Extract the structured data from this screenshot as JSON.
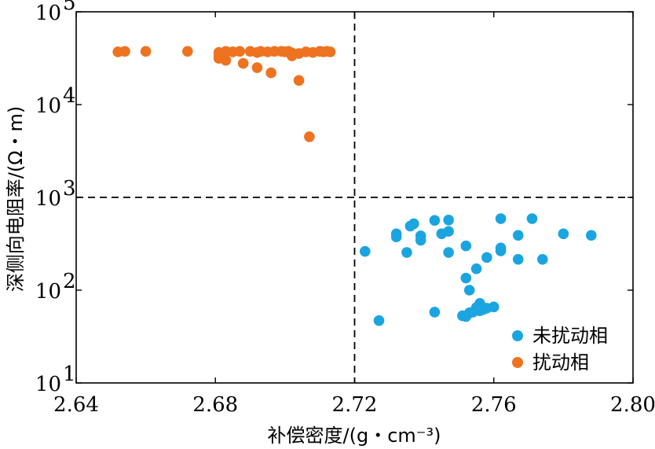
{
  "chart_data": {
    "type": "scatter",
    "xlabel": "补偿密度/(g・cm⁻³)",
    "ylabel": "深侧向电阻率/(Ω・m)",
    "xlim": [
      2.64,
      2.8
    ],
    "ylim": [
      10,
      100000
    ],
    "yscale": "log",
    "x_ticks": [
      "2.64",
      "2.68",
      "2.72",
      "2.76",
      "2.80"
    ],
    "y_ticks": [
      {
        "base": "10",
        "exp": "1",
        "value": 10
      },
      {
        "base": "10",
        "exp": "2",
        "value": 100
      },
      {
        "base": "10",
        "exp": "3",
        "value": 1000
      },
      {
        "base": "10",
        "exp": "4",
        "value": 10000
      },
      {
        "base": "10",
        "exp": "5",
        "value": 100000
      }
    ],
    "threshold_lines": {
      "x": 2.72,
      "y": 1000
    },
    "grid": false,
    "legend_position": "bottom-right",
    "series": [
      {
        "name": "未扰动相",
        "color": "#1ba5e0",
        "points": [
          [
            2.723,
            262
          ],
          [
            2.727,
            47
          ],
          [
            2.732,
            405
          ],
          [
            2.732,
            375
          ],
          [
            2.735,
            255
          ],
          [
            2.736,
            490
          ],
          [
            2.737,
            520
          ],
          [
            2.739,
            385
          ],
          [
            2.739,
            345
          ],
          [
            2.743,
            565
          ],
          [
            2.743,
            58
          ],
          [
            2.745,
            405
          ],
          [
            2.747,
            430
          ],
          [
            2.747,
            570
          ],
          [
            2.747,
            255
          ],
          [
            2.751,
            53
          ],
          [
            2.752,
            52
          ],
          [
            2.752,
            300
          ],
          [
            2.752,
            135
          ],
          [
            2.753,
            100
          ],
          [
            2.753,
            57
          ],
          [
            2.754,
            58
          ],
          [
            2.755,
            170
          ],
          [
            2.755,
            65
          ],
          [
            2.756,
            72
          ],
          [
            2.756,
            60
          ],
          [
            2.757,
            62
          ],
          [
            2.758,
            225
          ],
          [
            2.758,
            64
          ],
          [
            2.76,
            66
          ],
          [
            2.762,
            590
          ],
          [
            2.762,
            285
          ],
          [
            2.762,
            265
          ],
          [
            2.767,
            390
          ],
          [
            2.767,
            215
          ],
          [
            2.771,
            590
          ],
          [
            2.774,
            215
          ],
          [
            2.78,
            405
          ],
          [
            2.788,
            390
          ]
        ]
      },
      {
        "name": "扰动相",
        "color": "#ee7320",
        "points": [
          [
            2.652,
            37000
          ],
          [
            2.654,
            37500
          ],
          [
            2.66,
            37500
          ],
          [
            2.672,
            37500
          ],
          [
            2.681,
            36500
          ],
          [
            2.681,
            33500
          ],
          [
            2.681,
            31500
          ],
          [
            2.683,
            37500
          ],
          [
            2.683,
            30000
          ],
          [
            2.685,
            37000
          ],
          [
            2.687,
            37500
          ],
          [
            2.688,
            27800
          ],
          [
            2.69,
            37500
          ],
          [
            2.692,
            25000
          ],
          [
            2.692,
            36500
          ],
          [
            2.693,
            37500
          ],
          [
            2.695,
            37000
          ],
          [
            2.696,
            22000
          ],
          [
            2.697,
            37500
          ],
          [
            2.699,
            37500
          ],
          [
            2.7,
            37000
          ],
          [
            2.701,
            37500
          ],
          [
            2.702,
            36000
          ],
          [
            2.702,
            33500
          ],
          [
            2.704,
            35500
          ],
          [
            2.704,
            18200
          ],
          [
            2.706,
            37000
          ],
          [
            2.707,
            4500
          ],
          [
            2.708,
            36500
          ],
          [
            2.71,
            37500
          ],
          [
            2.711,
            37000
          ],
          [
            2.712,
            37500
          ],
          [
            2.713,
            37000
          ]
        ]
      }
    ]
  }
}
